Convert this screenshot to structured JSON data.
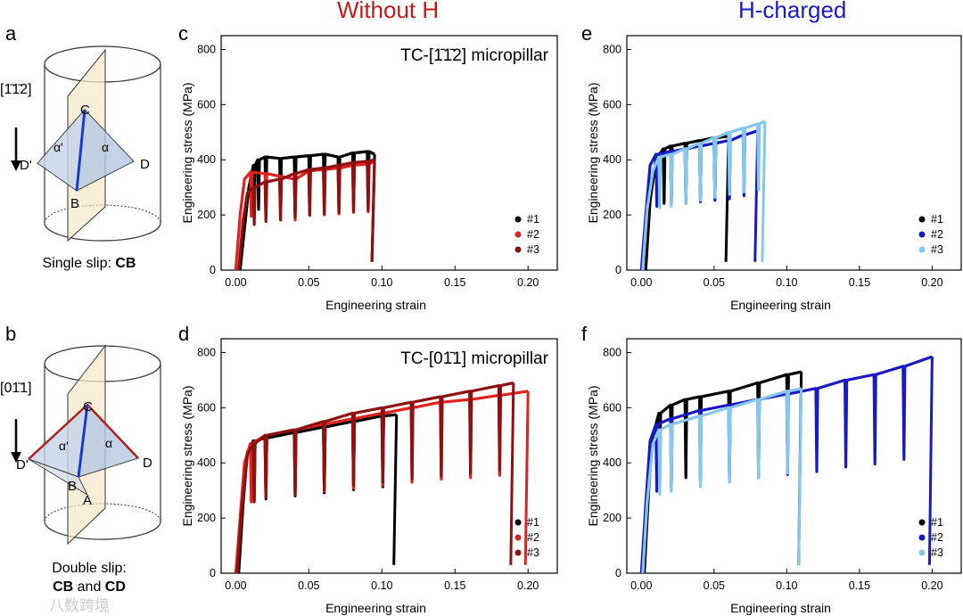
{
  "panel_letters": {
    "a": "a",
    "b": "b",
    "c": "c",
    "d": "d",
    "e": "e",
    "f": "f"
  },
  "column_titles": {
    "left": "Without H",
    "right": "H-charged"
  },
  "colors": {
    "without_h_title": "#c41a1a",
    "h_charged_title": "#1a1ac4"
  },
  "schematic_a": {
    "direction": "[1̄1̄2]",
    "labels": [
      "C",
      "D'",
      "D",
      "B",
      "α'",
      "α"
    ],
    "caption_prefix": "Single slip: ",
    "caption_bold": "CB"
  },
  "schematic_b": {
    "direction": "[01̄1]",
    "labels": [
      "C",
      "D'",
      "D",
      "B",
      "A",
      "α'",
      "α"
    ],
    "caption_line1": "Double slip:",
    "caption_bold1": "CB",
    "caption_and": " and ",
    "caption_bold2": "CD"
  },
  "watermark": "八数跨境",
  "chart_data": [
    {
      "id": "c",
      "type": "line",
      "annotation": "TC-[1̄1̄2] micropillar",
      "xlabel": "Engineering strain",
      "ylabel": "Engineering stress (MPa)",
      "xlim": [
        -0.01,
        0.22
      ],
      "ylim": [
        0,
        850
      ],
      "xticks": [
        "0.00",
        "0.05",
        "0.10",
        "0.15",
        "0.20"
      ],
      "yticks": [
        "0",
        "200",
        "400",
        "600",
        "800"
      ],
      "legend": [
        "#1",
        "#2",
        "#3"
      ],
      "legend_colors": [
        "#000000",
        "#e0221c",
        "#8e1010"
      ],
      "series": [
        {
          "name": "#1",
          "x": [
            0.003,
            0.006,
            0.009,
            0.012,
            0.015,
            0.02,
            0.03,
            0.04,
            0.05,
            0.06,
            0.07,
            0.08,
            0.09,
            0.095
          ],
          "y": [
            0,
            150,
            300,
            380,
            400,
            410,
            405,
            410,
            415,
            420,
            410,
            425,
            430,
            420
          ]
        },
        {
          "name": "#2",
          "x": [
            0.0,
            0.003,
            0.006,
            0.01,
            0.02,
            0.03,
            0.04,
            0.05,
            0.06,
            0.07,
            0.08,
            0.09,
            0.095
          ],
          "y": [
            0,
            200,
            330,
            355,
            350,
            340,
            330,
            360,
            365,
            370,
            380,
            385,
            395
          ]
        },
        {
          "name": "#3",
          "x": [
            0.002,
            0.005,
            0.008,
            0.012,
            0.02,
            0.03,
            0.04,
            0.05,
            0.06,
            0.07,
            0.08,
            0.09,
            0.095
          ],
          "y": [
            0,
            180,
            280,
            300,
            320,
            330,
            350,
            365,
            370,
            380,
            390,
            395,
            400
          ]
        }
      ]
    },
    {
      "id": "e",
      "type": "line",
      "xlabel": "Engineering strain",
      "ylabel": "Engineering stress (MPa)",
      "xlim": [
        -0.01,
        0.22
      ],
      "ylim": [
        0,
        850
      ],
      "xticks": [
        "0.00",
        "0.05",
        "0.10",
        "0.15",
        "0.20"
      ],
      "yticks": [
        "0",
        "200",
        "400",
        "600",
        "800"
      ],
      "legend": [
        "#1",
        "#2",
        "#3"
      ],
      "legend_colors": [
        "#000000",
        "#1a1ac4",
        "#86c7ec"
      ],
      "series": [
        {
          "name": "#1",
          "x": [
            0.003,
            0.006,
            0.01,
            0.015,
            0.02,
            0.03,
            0.04,
            0.05,
            0.06
          ],
          "y": [
            0,
            250,
            400,
            440,
            450,
            460,
            470,
            480,
            485
          ]
        },
        {
          "name": "#2",
          "x": [
            0.0,
            0.003,
            0.006,
            0.01,
            0.02,
            0.03,
            0.04,
            0.05,
            0.06,
            0.07,
            0.08
          ],
          "y": [
            0,
            200,
            380,
            420,
            430,
            440,
            450,
            460,
            470,
            490,
            505
          ]
        },
        {
          "name": "#3",
          "x": [
            0.001,
            0.004,
            0.008,
            0.012,
            0.02,
            0.03,
            0.04,
            0.05,
            0.06,
            0.07,
            0.08,
            0.085
          ],
          "y": [
            0,
            220,
            360,
            410,
            420,
            440,
            460,
            480,
            500,
            515,
            530,
            540
          ]
        }
      ]
    },
    {
      "id": "d",
      "type": "line",
      "annotation": "TC-[01̄1] micropillar",
      "xlabel": "Engineering strain",
      "ylabel": "Engineering stress (MPa)",
      "xlim": [
        -0.01,
        0.22
      ],
      "ylim": [
        0,
        850
      ],
      "xticks": [
        "0.00",
        "0.05",
        "0.10",
        "0.15",
        "0.20"
      ],
      "yticks": [
        "0",
        "200",
        "400",
        "600",
        "800"
      ],
      "legend": [
        "#1",
        "#2",
        "#3"
      ],
      "legend_colors": [
        "#000000",
        "#e0221c",
        "#8e1010"
      ],
      "series": [
        {
          "name": "#1",
          "x": [
            0.002,
            0.005,
            0.008,
            0.012,
            0.02,
            0.04,
            0.06,
            0.08,
            0.1,
            0.11
          ],
          "y": [
            0,
            250,
            440,
            480,
            490,
            510,
            530,
            550,
            570,
            575
          ]
        },
        {
          "name": "#2",
          "x": [
            0.0,
            0.003,
            0.006,
            0.01,
            0.02,
            0.04,
            0.06,
            0.08,
            0.1,
            0.12,
            0.14,
            0.16,
            0.18,
            0.2
          ],
          "y": [
            0,
            200,
            400,
            470,
            500,
            520,
            540,
            560,
            580,
            600,
            620,
            630,
            645,
            660
          ]
        },
        {
          "name": "#3",
          "x": [
            0.001,
            0.004,
            0.008,
            0.012,
            0.02,
            0.04,
            0.06,
            0.08,
            0.1,
            0.12,
            0.14,
            0.16,
            0.18,
            0.19
          ],
          "y": [
            0,
            220,
            430,
            470,
            500,
            520,
            550,
            580,
            600,
            620,
            640,
            660,
            680,
            690
          ]
        }
      ]
    },
    {
      "id": "f",
      "type": "line",
      "xlabel": "Engineering strain",
      "ylabel": "Engineering stress (MPa)",
      "xlim": [
        -0.01,
        0.22
      ],
      "ylim": [
        0,
        850
      ],
      "xticks": [
        "0.00",
        "0.05",
        "0.10",
        "0.15",
        "0.20"
      ],
      "yticks": [
        "0",
        "200",
        "400",
        "600",
        "800"
      ],
      "legend": [
        "#1",
        "#2",
        "#3"
      ],
      "legend_colors": [
        "#000000",
        "#1a1ac4",
        "#86c7ec"
      ],
      "series": [
        {
          "name": "#1",
          "x": [
            0.002,
            0.005,
            0.008,
            0.012,
            0.02,
            0.03,
            0.04,
            0.06,
            0.08,
            0.1,
            0.11
          ],
          "y": [
            0,
            300,
            500,
            580,
            610,
            630,
            640,
            660,
            690,
            720,
            730
          ]
        },
        {
          "name": "#2",
          "x": [
            0.0,
            0.003,
            0.006,
            0.01,
            0.02,
            0.04,
            0.06,
            0.08,
            0.1,
            0.12,
            0.14,
            0.16,
            0.18,
            0.2
          ],
          "y": [
            0,
            250,
            480,
            540,
            560,
            590,
            610,
            630,
            650,
            670,
            700,
            720,
            750,
            785
          ]
        },
        {
          "name": "#3",
          "x": [
            0.001,
            0.004,
            0.008,
            0.012,
            0.02,
            0.04,
            0.06,
            0.08,
            0.1,
            0.11
          ],
          "y": [
            0,
            260,
            470,
            520,
            540,
            570,
            600,
            630,
            660,
            670
          ]
        }
      ]
    }
  ]
}
